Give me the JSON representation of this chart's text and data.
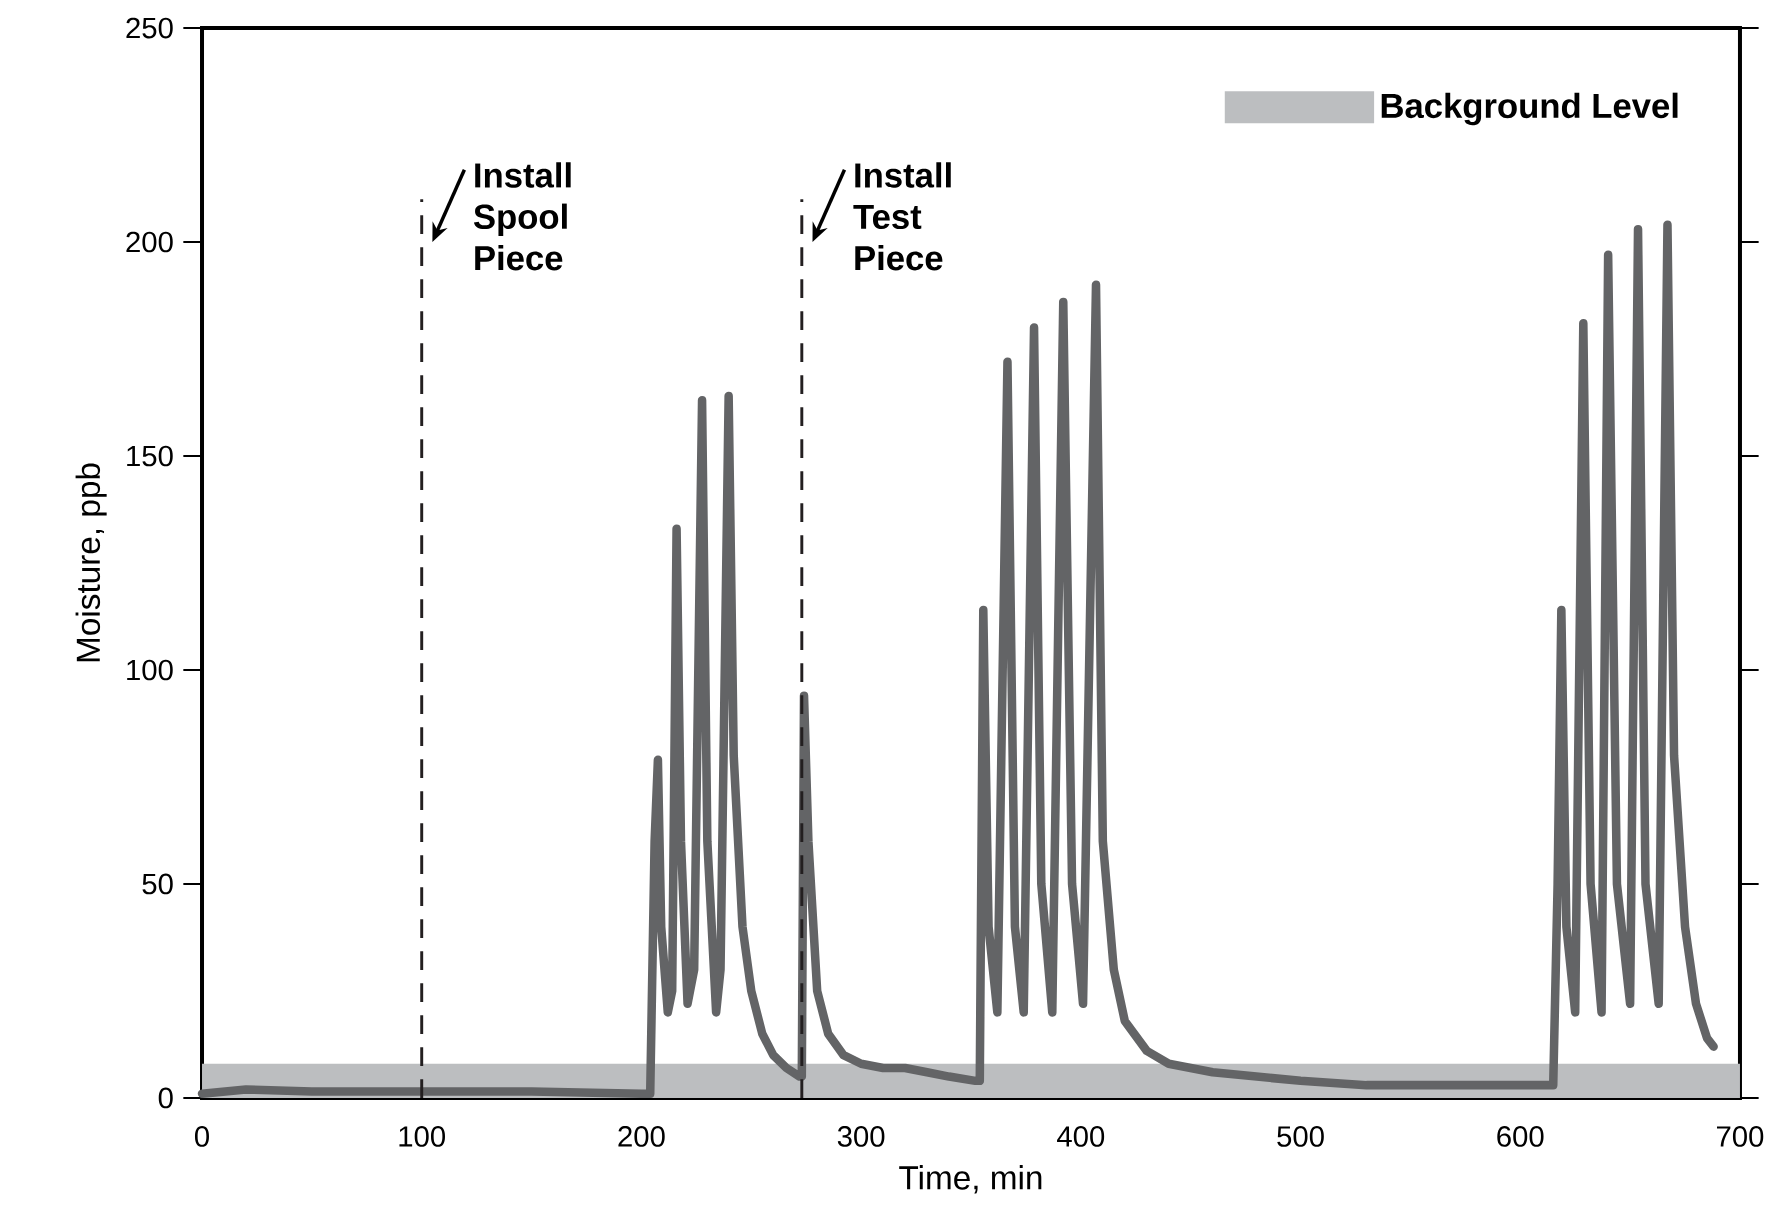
{
  "chart_data": {
    "type": "line",
    "xlabel": "Time, min",
    "ylabel": "Moisture, ppb",
    "xlim": [
      0,
      700
    ],
    "ylim": [
      0,
      250
    ],
    "xticks": [
      0,
      100,
      200,
      300,
      400,
      500,
      600,
      700
    ],
    "yticks": [
      0,
      50,
      100,
      150,
      200,
      250
    ],
    "grid": false,
    "legend": "top right",
    "marker": "none",
    "line_style": "solid",
    "series": [
      {
        "color": "#636466",
        "x": [
          0,
          20,
          50,
          100,
          150,
          200,
          204,
          206,
          207.5,
          209,
          212,
          214,
          216,
          218,
          221,
          224,
          227.6,
          230,
          234,
          236,
          239.7,
          242,
          246,
          250,
          255,
          260,
          266,
          272,
          273,
          274,
          276,
          280,
          285,
          292,
          300,
          310,
          320,
          330,
          340,
          352,
          354,
          355.6,
          358,
          362,
          366.6,
          370,
          374,
          378.7,
          382,
          387,
          392,
          396,
          401,
          406.9,
          410,
          415,
          420,
          430,
          440,
          460,
          480,
          500,
          530,
          560,
          600,
          615,
          617,
          618.7,
          621,
          625,
          628.7,
          632,
          637,
          640,
          644,
          650,
          653.6,
          657,
          663,
          667,
          670,
          675,
          680,
          685,
          688
        ],
        "values": [
          1,
          2,
          1.5,
          1.5,
          1.5,
          1,
          1,
          60,
          79,
          40,
          20,
          25,
          133,
          60,
          22,
          30,
          163,
          60,
          20,
          30,
          164,
          80,
          40,
          25,
          15,
          10,
          7,
          5,
          5,
          94,
          60,
          25,
          15,
          10,
          8,
          7,
          7,
          6,
          5,
          4,
          4,
          114,
          40,
          20,
          172,
          40,
          20,
          180,
          50,
          20,
          186,
          50,
          22,
          190,
          60,
          30,
          18,
          11,
          8,
          6,
          5,
          4,
          3,
          3,
          3,
          3,
          50,
          114,
          40,
          20,
          181,
          50,
          20,
          197,
          50,
          22,
          203,
          50,
          22,
          204,
          80,
          40,
          22,
          14,
          12
        ]
      }
    ],
    "ref_lines": [
      {
        "axis": "x",
        "value": 100,
        "label": "Install Spool Piece",
        "line_style": "dashed",
        "color": "#231f20"
      },
      {
        "axis": "x",
        "value": 273,
        "label": "Install Test Piece",
        "line_style": "dashed",
        "color": "#231f20"
      }
    ],
    "bands": [
      {
        "axis": "y",
        "from": 0,
        "to": 8,
        "label": "Background Level",
        "color": "#bcbec0"
      }
    ]
  }
}
